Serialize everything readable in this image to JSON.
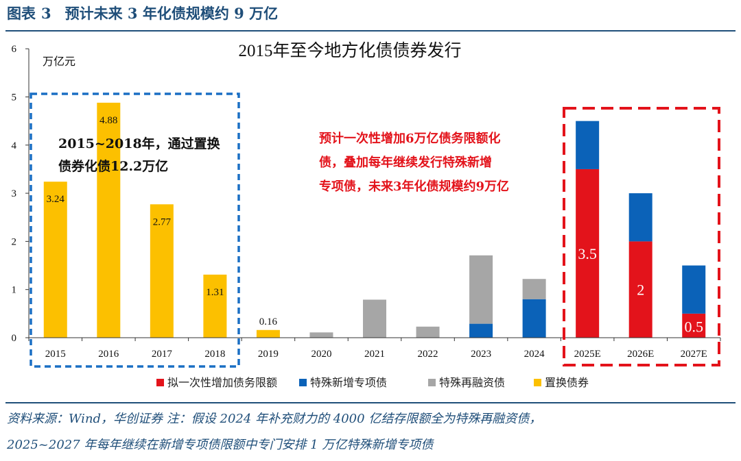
{
  "header": {
    "figure_label": "图表",
    "figure_number": "3",
    "caption": "预计未来 3 年化债规模约 9 万亿"
  },
  "source": {
    "line1": "资料来源：Wind，华创证券    注：假设 2024 年补充财力的 4000 亿结存限额全为特殊再融资债，",
    "line2": "2025~2027 年每年继续在新增专项债限额中专门安排 1 万亿特殊新增专项债"
  },
  "colors": {
    "red": "#e3131b",
    "blue": "#0b62b8",
    "gray": "#a6a6a6",
    "yellow": "#fcc000",
    "annotation_red": "#e3131b",
    "box_blue": "#1a6fc4"
  },
  "chart_data": {
    "type": "bar",
    "stacked": true,
    "title": "2015年至今地方化债债券发行",
    "ylabel": "万亿元",
    "ylim": [
      0,
      6
    ],
    "yticks": [
      0,
      1,
      2,
      3,
      4,
      5,
      6
    ],
    "categories": [
      "2015",
      "2016",
      "2017",
      "2018",
      "2019",
      "2020",
      "2021",
      "2022",
      "2023",
      "2024",
      "2025E",
      "2026E",
      "2027E"
    ],
    "series": [
      {
        "name": "拟一次性增加债务限额",
        "color": "#e3131b",
        "values": [
          0,
          0,
          0,
          0,
          0,
          0,
          0,
          0,
          0,
          0,
          3.5,
          2,
          0.5
        ]
      },
      {
        "name": "特殊新增专项债",
        "color": "#0b62b8",
        "values": [
          0,
          0,
          0,
          0,
          0,
          0,
          0,
          0,
          0.29,
          0.8,
          1.0,
          1.0,
          1.0
        ]
      },
      {
        "name": "特殊再融资债",
        "color": "#a6a6a6",
        "values": [
          0,
          0,
          0,
          0,
          0,
          0.11,
          0.79,
          0.23,
          1.42,
          0.42,
          0,
          0,
          0
        ]
      },
      {
        "name": "置换债券",
        "color": "#fcc000",
        "values": [
          3.24,
          4.88,
          2.77,
          1.31,
          0.16,
          0,
          0,
          0,
          0,
          0,
          0,
          0,
          0
        ]
      }
    ],
    "data_labels": [
      {
        "category": "2015",
        "text": "3.24",
        "value": 3.24,
        "series": "置换债券"
      },
      {
        "category": "2016",
        "text": "4.88",
        "value": 4.88,
        "series": "置换债券"
      },
      {
        "category": "2017",
        "text": "2.77",
        "value": 2.77,
        "series": "置换债券"
      },
      {
        "category": "2018",
        "text": "1.31",
        "value": 1.31,
        "series": "置换债券"
      },
      {
        "category": "2019",
        "text": "0.16",
        "value": 0.16,
        "series": "置换债券",
        "outside": true
      },
      {
        "category": "2025E",
        "text": "3.5",
        "value": 3.5,
        "series": "拟一次性增加债务限额"
      },
      {
        "category": "2026E",
        "text": "2",
        "value": 2,
        "series": "拟一次性增加债务限额"
      },
      {
        "category": "2027E",
        "text": "0.5",
        "value": 0.5,
        "series": "拟一次性增加债务限额"
      }
    ],
    "annotations": {
      "left_box_text": [
        "2015~2018年，通过置换",
        "债券化债12.2万亿"
      ],
      "right_box_text": [
        "预计一次性增加6万亿债务限额化",
        "债，叠加每年继续发行特殊新增",
        "专项债，未来3年化债规模约9万亿"
      ]
    },
    "legend_position": "bottom",
    "grid": false
  }
}
